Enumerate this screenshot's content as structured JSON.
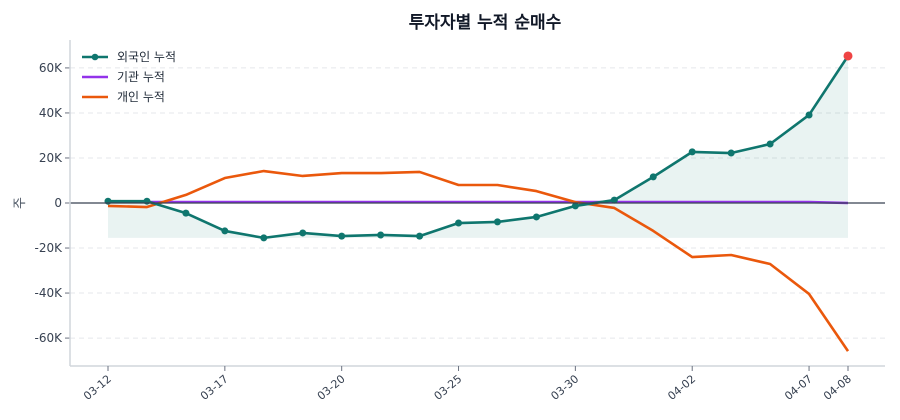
{
  "chart_data": {
    "type": "line",
    "title": "투자자별 누적 순매수",
    "xlabel": "",
    "ylabel": "주",
    "categories": [
      "03-12",
      "",
      "",
      "03-17",
      "",
      "",
      "03-20",
      "",
      "",
      "03-25",
      "",
      "",
      "03-30",
      "",
      "",
      "04-02",
      "",
      "",
      "04-07",
      "04-08"
    ],
    "ylim": [
      -72400,
      72400
    ],
    "yticks": [
      -60000,
      -40000,
      -20000,
      0,
      20000,
      40000,
      60000
    ],
    "ytick_labels": [
      "-60K",
      "-40K",
      "-20K",
      "0",
      "20K",
      "40K",
      "60K"
    ],
    "grid": "horizontal dashed",
    "legend": "top-left",
    "series": [
      {
        "name": "외국인 누적",
        "color": "#0f766e",
        "markers": true,
        "fill": true,
        "values": [
          800,
          800,
          -4500,
          -12400,
          -15500,
          -13300,
          -14700,
          -14200,
          -14700,
          -8900,
          -8400,
          -6200,
          -1300,
          1300,
          11600,
          22700,
          22200,
          26200,
          39100,
          65300
        ]
      },
      {
        "name": "기관 누적",
        "color": "#9333ea",
        "markers": false,
        "values": [
          400,
          400,
          400,
          400,
          400,
          400,
          400,
          400,
          400,
          400,
          400,
          400,
          400,
          400,
          400,
          400,
          400,
          400,
          400,
          0
        ]
      },
      {
        "name": "개인 누적",
        "color": "#ea580c",
        "markers": false,
        "values": [
          -1300,
          -1800,
          3600,
          11100,
          14200,
          12000,
          13300,
          13300,
          13800,
          8000,
          8000,
          5300,
          400,
          -2200,
          -12400,
          -24000,
          -23100,
          -27100,
          -40400,
          -65800
        ]
      }
    ],
    "highlight_last_point_color": "#ef4444"
  }
}
